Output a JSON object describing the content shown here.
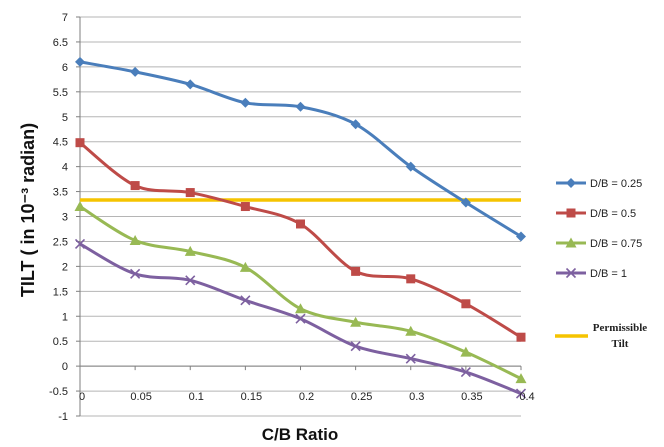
{
  "chart_data": {
    "type": "line",
    "xlabel": "C/B Ratio",
    "ylabel": "TILT ( in 10⁻³ radian)",
    "x": [
      0,
      0.05,
      0.1,
      0.15,
      0.2,
      0.25,
      0.3,
      0.35,
      0.4
    ],
    "x_tick_labels": [
      "0",
      "0.05",
      "0.1",
      "0.15",
      "0.2",
      "0.25",
      "0.3",
      "0.35",
      "0.4"
    ],
    "y_ticks": [
      -1,
      -0.5,
      0,
      0.5,
      1,
      1.5,
      2,
      2.5,
      3,
      3.5,
      4,
      4.5,
      5,
      5.5,
      6,
      6.5,
      7
    ],
    "y_tick_labels": [
      "-1",
      "-0.5",
      "0",
      "0.5",
      "1",
      "1.5",
      "2",
      "2.5",
      "3",
      "3.5",
      "4",
      "4.5",
      "5",
      "5.5",
      "6",
      "6.5",
      "7"
    ],
    "xlim": [
      0,
      0.4
    ],
    "ylim": [
      -1,
      7
    ],
    "grid": "horizontal",
    "legend_position": "right",
    "series": [
      {
        "name": "D/B = 0.25",
        "color": "#4a7ebb",
        "marker": "diamond",
        "values": [
          6.1,
          5.9,
          5.65,
          5.28,
          5.2,
          4.85,
          4.0,
          3.28,
          2.6
        ]
      },
      {
        "name": "D/B = 0.5",
        "color": "#be4b48",
        "marker": "square",
        "values": [
          4.48,
          3.62,
          3.48,
          3.2,
          2.85,
          1.9,
          1.75,
          1.25,
          0.58
        ]
      },
      {
        "name": "D/B = 0.75",
        "color": "#98b954",
        "marker": "triangle",
        "values": [
          3.2,
          2.52,
          2.3,
          1.98,
          1.15,
          0.88,
          0.7,
          0.28,
          -0.25
        ]
      },
      {
        "name": "D/B = 1",
        "color": "#7d60a0",
        "marker": "x",
        "values": [
          2.45,
          1.85,
          1.72,
          1.32,
          0.95,
          0.4,
          0.15,
          -0.12,
          -0.55
        ]
      }
    ],
    "reference_line": {
      "name": "Permissible Tilt",
      "value": 3.33,
      "color": "#f5c400"
    },
    "legend": [
      "D/B = 0.25",
      "D/B = 0.5",
      "D/B = 0.75",
      "D/B = 1"
    ],
    "reference_legend_lines": [
      "Permissible",
      "Tilt"
    ]
  }
}
